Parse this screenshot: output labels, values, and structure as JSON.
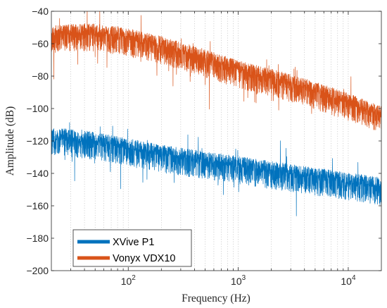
{
  "chart_data": {
    "type": "line",
    "title": "",
    "xlabel": "Frequency (Hz)",
    "ylabel": "Amplitude (dB)",
    "xscale": "log",
    "xlim": [
      20,
      20000
    ],
    "ylim": [
      -200,
      -40
    ],
    "grid": "x-major-and-minor-dotted",
    "legend_position": "bottom-left",
    "x_ticks": [
      {
        "value": 100,
        "label": "10",
        "exp": "2"
      },
      {
        "value": 1000,
        "label": "10",
        "exp": "3"
      },
      {
        "value": 10000,
        "label": "10",
        "exp": "4"
      }
    ],
    "y_ticks": [
      -40,
      -60,
      -80,
      -100,
      -120,
      -140,
      -160,
      -180,
      -200
    ],
    "y_tick_labels": [
      "−40",
      "−60",
      "−80",
      "−100",
      "−120",
      "−140",
      "−160",
      "−180",
      "−200"
    ],
    "series": [
      {
        "name": "XVive P1",
        "color": "#0072BD",
        "trend": [
          {
            "x": 20,
            "y": -116
          },
          {
            "x": 50,
            "y": -119
          },
          {
            "x": 100,
            "y": -123
          },
          {
            "x": 200,
            "y": -127
          },
          {
            "x": 500,
            "y": -131
          },
          {
            "x": 1000,
            "y": -134
          },
          {
            "x": 2000,
            "y": -137
          },
          {
            "x": 5000,
            "y": -141
          },
          {
            "x": 10000,
            "y": -144
          },
          {
            "x": 20000,
            "y": -147
          }
        ],
        "spread": 7
      },
      {
        "name": "Vonyx VDX10",
        "color": "#D95319",
        "trend": [
          {
            "x": 20,
            "y": -53
          },
          {
            "x": 50,
            "y": -52
          },
          {
            "x": 100,
            "y": -55
          },
          {
            "x": 200,
            "y": -60
          },
          {
            "x": 500,
            "y": -68
          },
          {
            "x": 1000,
            "y": -75
          },
          {
            "x": 2000,
            "y": -80
          },
          {
            "x": 5000,
            "y": -88
          },
          {
            "x": 10000,
            "y": -95
          },
          {
            "x": 20000,
            "y": -103
          }
        ],
        "spread": 7
      }
    ]
  }
}
